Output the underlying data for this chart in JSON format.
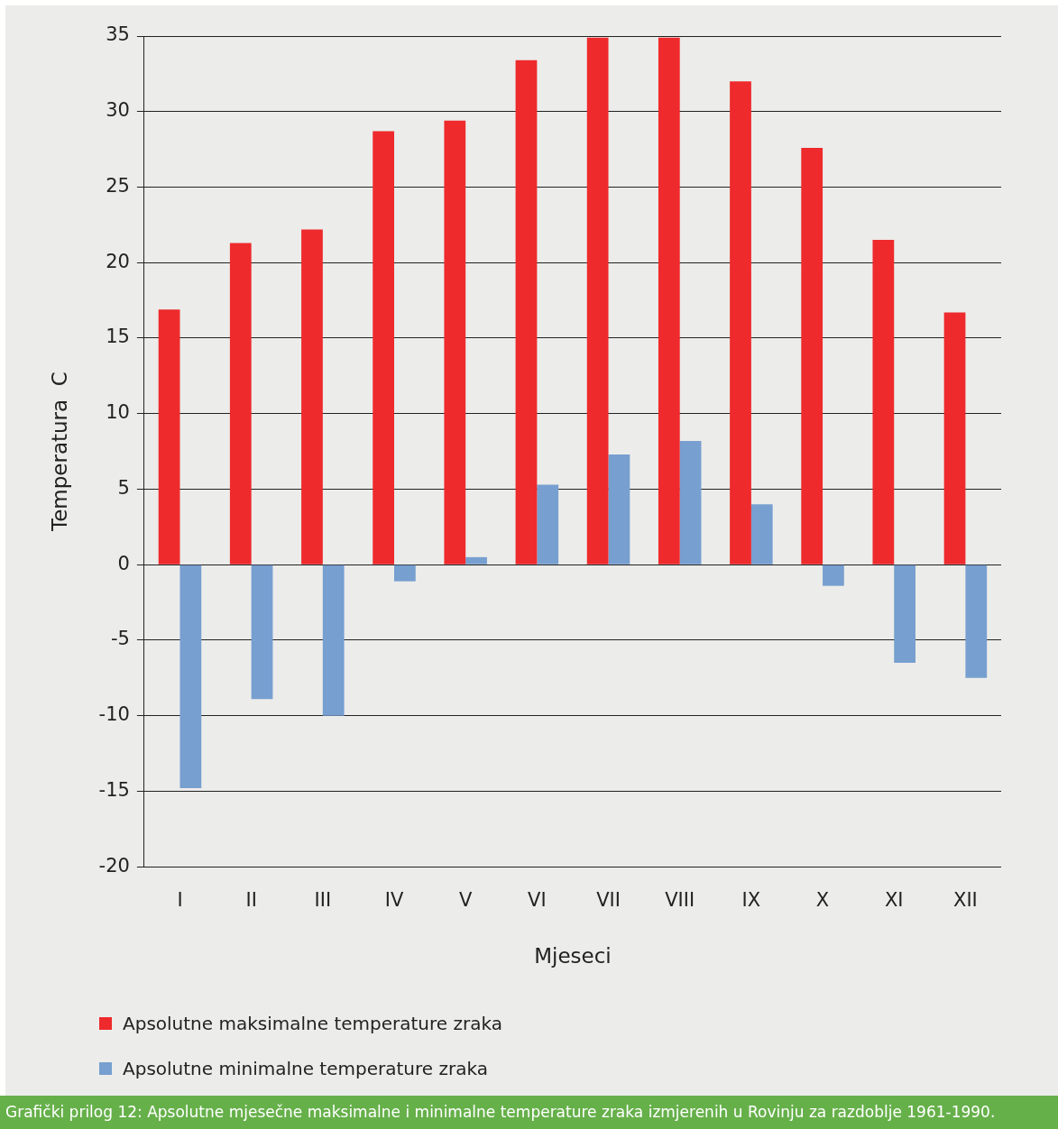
{
  "chart_data": {
    "type": "bar",
    "xlabel": "Mjeseci",
    "ylabel": "Temperatura  C",
    "categories": [
      "I",
      "II",
      "III",
      "IV",
      "V",
      "VI",
      "VII",
      "VIII",
      "IX",
      "X",
      "XI",
      "XII"
    ],
    "series": [
      {
        "name": "Apsolutne maksimalne temperature zraka",
        "color": "#ee2a2c",
        "values": [
          16.9,
          21.3,
          22.2,
          28.7,
          29.4,
          33.4,
          34.9,
          34.9,
          32.0,
          27.6,
          21.5,
          16.7
        ]
      },
      {
        "name": "Apsolutne minimalne temperature zraka",
        "color": "#779fd0",
        "values": [
          -14.8,
          -8.9,
          -10.0,
          -1.1,
          0.5,
          5.3,
          7.3,
          8.2,
          4.0,
          -1.4,
          -6.5,
          -7.5
        ]
      }
    ],
    "ylim": [
      -20,
      35
    ],
    "yticks": [
      -20,
      -15,
      -10,
      -5,
      0,
      5,
      10,
      15,
      20,
      25,
      30,
      35
    ],
    "grid": "y",
    "legend": "bottom",
    "annotations": [
      "Grafički prilog 12: Apsolutne mjesečne maksimalne i minimalne temperature zraka izmjerenih u Rovinju za razdoblje 1961-1990."
    ]
  }
}
